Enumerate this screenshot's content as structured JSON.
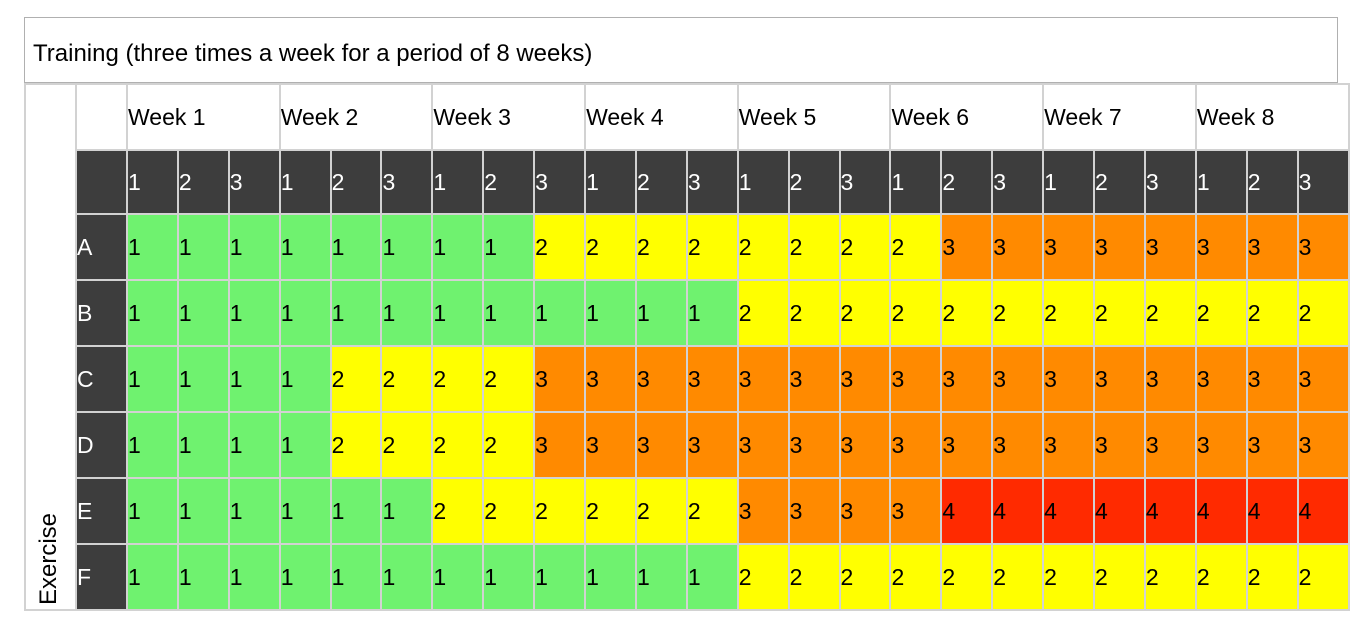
{
  "title": "Training (three times a week for a period of 8 weeks)",
  "axis_label": "Exercise",
  "weeks": [
    "Week 1",
    "Week 2",
    "Week 3",
    "Week 4",
    "Week 5",
    "Week 6",
    "Week 7",
    "Week 8"
  ],
  "sessions": [
    "1",
    "2",
    "3",
    "1",
    "2",
    "3",
    "1",
    "2",
    "3",
    "1",
    "2",
    "3",
    "1",
    "2",
    "3",
    "1",
    "2",
    "3",
    "1",
    "2",
    "3",
    "1",
    "2",
    "3"
  ],
  "level_colors": {
    "1": "#6ff26f",
    "2": "#ffff00",
    "3": "#ff8a00",
    "4": "#ff2a00"
  },
  "rows": [
    {
      "label": "A",
      "values": [
        1,
        1,
        1,
        1,
        1,
        1,
        1,
        1,
        2,
        2,
        2,
        2,
        2,
        2,
        2,
        2,
        3,
        3,
        3,
        3,
        3,
        3,
        3,
        3
      ]
    },
    {
      "label": "B",
      "values": [
        1,
        1,
        1,
        1,
        1,
        1,
        1,
        1,
        1,
        1,
        1,
        1,
        2,
        2,
        2,
        2,
        2,
        2,
        2,
        2,
        2,
        2,
        2,
        2
      ]
    },
    {
      "label": "C",
      "values": [
        1,
        1,
        1,
        1,
        2,
        2,
        2,
        2,
        3,
        3,
        3,
        3,
        3,
        3,
        3,
        3,
        3,
        3,
        3,
        3,
        3,
        3,
        3,
        3
      ]
    },
    {
      "label": "D",
      "values": [
        1,
        1,
        1,
        1,
        2,
        2,
        2,
        2,
        3,
        3,
        3,
        3,
        3,
        3,
        3,
        3,
        3,
        3,
        3,
        3,
        3,
        3,
        3,
        3
      ]
    },
    {
      "label": "E",
      "values": [
        1,
        1,
        1,
        1,
        1,
        1,
        2,
        2,
        2,
        2,
        2,
        2,
        3,
        3,
        3,
        3,
        4,
        4,
        4,
        4,
        4,
        4,
        4,
        4
      ]
    },
    {
      "label": "F",
      "values": [
        1,
        1,
        1,
        1,
        1,
        1,
        1,
        1,
        1,
        1,
        1,
        1,
        2,
        2,
        2,
        2,
        2,
        2,
        2,
        2,
        2,
        2,
        2,
        2
      ]
    }
  ]
}
